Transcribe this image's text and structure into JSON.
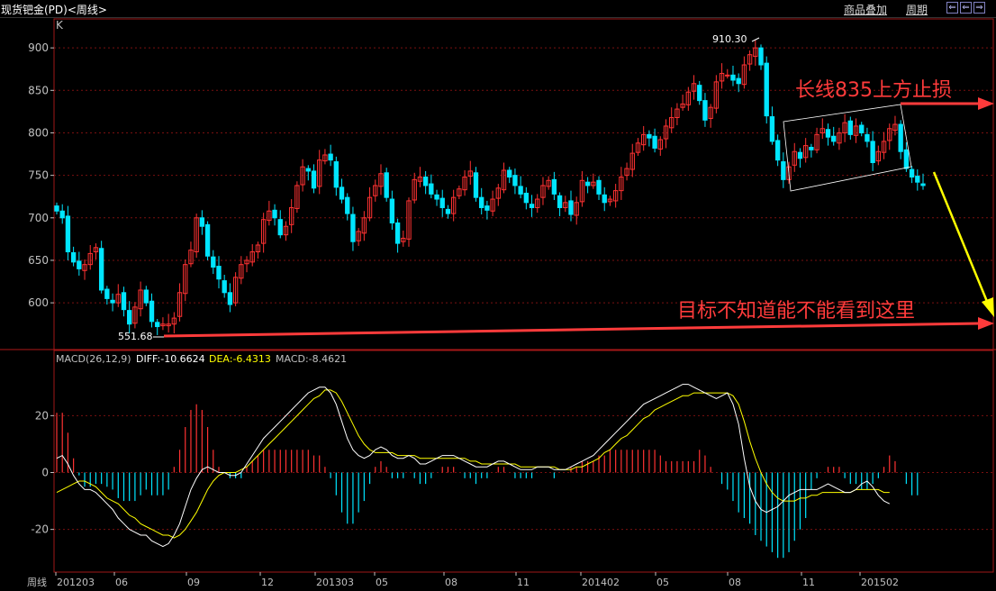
{
  "header": {
    "title": "现货钯金(PD)<周线>",
    "overlay_label": "商品叠加",
    "period_label": "周期",
    "win_buttons": [
      "⇐",
      "⇐",
      "⇒"
    ]
  },
  "colors": {
    "up": "#ff3232",
    "down": "#00e5ff",
    "diff_line": "#ffffff",
    "dea_line": "#ffff00",
    "grid": "#7a1010",
    "annotation": "#ff3b3b",
    "arrow_yellow": "#ffff00"
  },
  "price_panel": {
    "label": "K",
    "y_ticks": [
      "900",
      "850",
      "800",
      "750",
      "700",
      "650",
      "600"
    ],
    "high_label": "910.30",
    "low_label": "551.68",
    "annotation_stop": "长线835上方止损",
    "annotation_target": "目标不知道能不能看到这里"
  },
  "macd_panel": {
    "label": "MACD(26,12,9)",
    "diff_text": "DIFF:-10.6624",
    "dea_text": "DEA:-6.4313",
    "macd_text": "MACD:-8.4621",
    "y_ticks": [
      "20",
      "0",
      "-20"
    ]
  },
  "x_axis": {
    "period": "周线",
    "ticks": [
      "201203",
      "06",
      "09",
      "12",
      "201303",
      "05",
      "08",
      "11",
      "201402",
      "05",
      "08",
      "11",
      "201502"
    ]
  },
  "chart_data": [
    {
      "type": "line",
      "title": "现货钯金(PD)<周线>",
      "series": [
        {
          "name": "K",
          "values": [
            708,
            700,
            660,
            648,
            640,
            645,
            658,
            665,
            615,
            605,
            600,
            610,
            592,
            575,
            595,
            615,
            600,
            578,
            572,
            575,
            575,
            582,
            612,
            645,
            662,
            700,
            690,
            655,
            642,
            628,
            612,
            598,
            630,
            645,
            650,
            660,
            668,
            698,
            708,
            700,
            680,
            690,
            712,
            738,
            760,
            755,
            735,
            768,
            774,
            768,
            736,
            722,
            705,
            672,
            684,
            700,
            724,
            738,
            752,
            724,
            694,
            670,
            676,
            720,
            745,
            748,
            738,
            728,
            722,
            712,
            705,
            724,
            734,
            748,
            755,
            724,
            712,
            709,
            722,
            735,
            756,
            748,
            738,
            728,
            718,
            712,
            722,
            738,
            744,
            728,
            712,
            718,
            704,
            718,
            744,
            738,
            742,
            728,
            718,
            722,
            732,
            748,
            758,
            776,
            788,
            798,
            794,
            782,
            792,
            808,
            818,
            828,
            834,
            848,
            858,
            838,
            815,
            830,
            860,
            870,
            868,
            862,
            858,
            880,
            892,
            900,
            880,
            820,
            790,
            768,
            745,
            760,
            778,
            770,
            785,
            780,
            798,
            805,
            795,
            790,
            800,
            812,
            798,
            808,
            800,
            790,
            765,
            778,
            790,
            805,
            810,
            778,
            758,
            748,
            742,
            738
          ],
          "x_ticks": [
            "201203",
            "06",
            "09",
            "12",
            "201303",
            "05",
            "08",
            "11",
            "201402",
            "05",
            "08",
            "11",
            "201502"
          ],
          "ylim": [
            545,
            915
          ]
        }
      ],
      "high": 910.3,
      "low": 551.68
    },
    {
      "type": "line",
      "title": "MACD(26,12,9)",
      "series": [
        {
          "name": "DIFF",
          "values": [
            5,
            6,
            3,
            -1,
            -4,
            -6,
            -6,
            -7,
            -9,
            -11,
            -13,
            -16,
            -18,
            -20,
            -21,
            -22,
            -22,
            -24,
            -25,
            -26,
            -25,
            -22,
            -18,
            -12,
            -6,
            -2,
            1,
            2,
            1,
            0,
            0,
            -1,
            -1,
            0,
            3,
            6,
            9,
            12,
            14,
            16,
            18,
            20,
            22,
            24,
            26,
            28,
            29,
            30,
            30,
            28,
            24,
            18,
            12,
            8,
            6,
            5,
            6,
            8,
            9,
            8,
            6,
            5,
            5,
            6,
            5,
            3,
            3,
            4,
            5,
            6,
            6,
            6,
            5,
            4,
            3,
            2,
            2,
            2,
            3,
            4,
            4,
            3,
            2,
            1,
            1,
            1,
            2,
            2,
            2,
            1,
            1,
            1,
            2,
            3,
            4,
            5,
            6,
            8,
            10,
            12,
            14,
            16,
            18,
            20,
            22,
            24,
            25,
            26,
            27,
            28,
            29,
            30,
            31,
            31,
            30,
            29,
            28,
            27,
            26,
            27,
            28,
            24,
            17,
            5,
            -5,
            -10,
            -13,
            -14,
            -13,
            -12,
            -10,
            -8,
            -7,
            -6,
            -6,
            -6,
            -6,
            -5,
            -4,
            -5,
            -6,
            -7,
            -7,
            -6,
            -4,
            -3,
            -5,
            -8,
            -10,
            -11
          ]
        },
        {
          "name": "DEA",
          "values": [
            -7,
            -6,
            -5,
            -4,
            -3,
            -3,
            -4,
            -5,
            -7,
            -9,
            -10,
            -11,
            -13,
            -15,
            -16,
            -18,
            -19,
            -20,
            -21,
            -22,
            -22,
            -23,
            -22,
            -20,
            -17,
            -14,
            -10,
            -6,
            -3,
            -1,
            0,
            0,
            0,
            1,
            2,
            4,
            6,
            8,
            10,
            12,
            14,
            16,
            18,
            20,
            22,
            24,
            26,
            27,
            29,
            29,
            28,
            25,
            21,
            17,
            13,
            10,
            8,
            7,
            7,
            7,
            7,
            6,
            6,
            6,
            6,
            5,
            5,
            5,
            5,
            5,
            5,
            5,
            5,
            5,
            4,
            4,
            3,
            3,
            3,
            3,
            3,
            3,
            3,
            2,
            2,
            2,
            2,
            2,
            2,
            2,
            1,
            1,
            1,
            2,
            2,
            3,
            4,
            5,
            7,
            8,
            10,
            12,
            13,
            15,
            17,
            19,
            20,
            22,
            23,
            24,
            25,
            26,
            27,
            27,
            28,
            28,
            28,
            28,
            28,
            28,
            28,
            27,
            24,
            18,
            11,
            5,
            0,
            -4,
            -7,
            -9,
            -10,
            -10,
            -10,
            -9,
            -9,
            -8,
            -8,
            -7,
            -7,
            -7,
            -7,
            -7,
            -7,
            -6,
            -6,
            -6,
            -6,
            -6,
            -7,
            -7
          ]
        },
        {
          "name": "MACD",
          "values": [
            21,
            21,
            14,
            5,
            -1,
            -5,
            -5,
            -4,
            -4,
            -5,
            -6,
            -9,
            -10,
            -10,
            -10,
            -8,
            -6,
            -8,
            -8,
            -8,
            -6,
            2,
            8,
            16,
            22,
            24,
            22,
            16,
            8,
            2,
            0,
            -2,
            -2,
            -2,
            2,
            4,
            6,
            8,
            8,
            8,
            8,
            8,
            8,
            8,
            8,
            8,
            6,
            6,
            2,
            -2,
            -8,
            -14,
            -18,
            -18,
            -14,
            -10,
            -4,
            2,
            4,
            2,
            -2,
            -2,
            -2,
            0,
            -2,
            -4,
            -4,
            -2,
            0,
            2,
            2,
            2,
            0,
            -2,
            -2,
            -4,
            -2,
            -2,
            0,
            2,
            2,
            0,
            -2,
            -2,
            -2,
            -2,
            0,
            0,
            0,
            -2,
            0,
            0,
            2,
            2,
            4,
            4,
            4,
            6,
            6,
            8,
            8,
            8,
            8,
            8,
            8,
            8,
            8,
            8,
            6,
            4,
            4,
            4,
            4,
            4,
            4,
            8,
            6,
            2,
            0,
            -4,
            -6,
            -10,
            -14,
            -16,
            -18,
            -22,
            -24,
            -26,
            -28,
            -30,
            -30,
            -28,
            -24,
            -20,
            -16,
            -6,
            -2,
            0,
            2,
            2,
            2,
            -2,
            -4,
            -4,
            -6,
            -6,
            -4,
            -2,
            2,
            6,
            4,
            0,
            -4,
            -8,
            -8
          ]
        }
      ],
      "x_ticks": [
        "201203",
        "06",
        "09",
        "12",
        "201303",
        "05",
        "08",
        "11",
        "201402",
        "05",
        "08",
        "11",
        "201502"
      ],
      "ylim": [
        -35,
        35
      ],
      "diff_current": -10.6624,
      "dea_current": -6.4313,
      "macd_current": -8.4621
    }
  ]
}
